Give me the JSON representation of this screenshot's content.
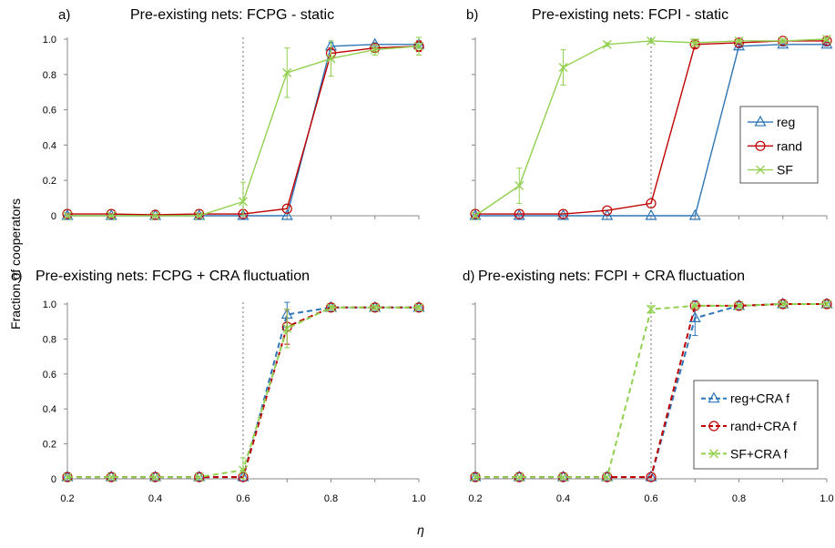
{
  "figure": {
    "y_axis_label": "Fraction of cooperators",
    "x_axis_label": "η"
  },
  "chart_data": [
    {
      "type": "line",
      "panel_letter": "a)",
      "title": "Pre-existing nets: FCPG - static",
      "x": [
        0.2,
        0.3,
        0.4,
        0.5,
        0.6,
        0.7,
        0.8,
        0.9,
        1.0
      ],
      "xlim": [
        0.2,
        1.0
      ],
      "ylim": [
        0,
        1.0
      ],
      "yticks": [
        "0",
        "0.2",
        "0.4",
        "0.6",
        "0.8",
        "1.0"
      ],
      "xticks": [],
      "vline_x": 0.6,
      "legend": null,
      "series": [
        {
          "name": "reg",
          "color": "#2e75b6",
          "marker": "triangle",
          "dash": "solid",
          "values": [
            0.0,
            0.0,
            0.0,
            0.0,
            0.0,
            0.0,
            0.96,
            0.97,
            0.97
          ],
          "err": [
            0,
            0,
            0,
            0,
            0,
            0,
            0.02,
            0.01,
            0.01
          ]
        },
        {
          "name": "rand",
          "color": "#c00000",
          "marker": "circle",
          "dash": "solid",
          "values": [
            0.01,
            0.01,
            0.005,
            0.01,
            0.01,
            0.04,
            0.92,
            0.95,
            0.96
          ],
          "err": [
            0,
            0,
            0,
            0,
            0,
            0,
            0.03,
            0.02,
            0.03
          ]
        },
        {
          "name": "SF",
          "color": "#92d050",
          "marker": "x",
          "dash": "solid",
          "values": [
            0.0,
            0.0,
            0.0,
            0.0,
            0.08,
            0.81,
            0.89,
            0.94,
            0.96
          ],
          "err": [
            0,
            0,
            0,
            0,
            0.11,
            0.14,
            0.1,
            0.03,
            0.05
          ]
        }
      ]
    },
    {
      "type": "line",
      "panel_letter": "b)",
      "title": "Pre-existing nets: FCPI - static",
      "x": [
        0.2,
        0.3,
        0.4,
        0.5,
        0.6,
        0.7,
        0.8,
        0.9,
        1.0
      ],
      "xlim": [
        0.2,
        1.0
      ],
      "ylim": [
        0,
        1.0
      ],
      "yticks": [],
      "xticks": [],
      "vline_x": 0.6,
      "legend": "right",
      "series": [
        {
          "name": "reg",
          "color": "#2e75b6",
          "marker": "triangle",
          "dash": "solid",
          "values": [
            0.0,
            0.0,
            0.0,
            0.0,
            0.0,
            0.0,
            0.96,
            0.97,
            0.97
          ],
          "err": [
            0,
            0,
            0,
            0,
            0,
            0,
            0.01,
            0.01,
            0.01
          ]
        },
        {
          "name": "rand",
          "color": "#c00000",
          "marker": "circle",
          "dash": "solid",
          "values": [
            0.01,
            0.01,
            0.01,
            0.03,
            0.07,
            0.97,
            0.98,
            0.99,
            0.99
          ],
          "err": [
            0,
            0,
            0,
            0,
            0,
            0.02,
            0.01,
            0.01,
            0.01
          ]
        },
        {
          "name": "SF",
          "color": "#92d050",
          "marker": "x",
          "dash": "solid",
          "values": [
            0.0,
            0.17,
            0.84,
            0.97,
            0.99,
            0.98,
            0.99,
            0.99,
            1.0
          ],
          "err": [
            0,
            0.1,
            0.1,
            0.01,
            0.01,
            0.02,
            0.01,
            0.01,
            0.01
          ]
        }
      ]
    },
    {
      "type": "line",
      "panel_letter": "c)",
      "title": "Pre-existing nets: FCPG + CRA fluctuation",
      "x": [
        0.2,
        0.3,
        0.4,
        0.5,
        0.6,
        0.7,
        0.8,
        0.9,
        1.0
      ],
      "xlim": [
        0.2,
        1.0
      ],
      "ylim": [
        0,
        1.0
      ],
      "yticks": [
        "0",
        "0.2",
        "0.4",
        "0.6",
        "0.8",
        "1.0"
      ],
      "xticks": [
        "0.2",
        "0.4",
        "0.6",
        "0.8",
        "1.0"
      ],
      "vline_x": 0.6,
      "legend": null,
      "series": [
        {
          "name": "reg+CRA f",
          "color": "#2e75b6",
          "marker": "triangle",
          "dash": "dashed",
          "values": [
            0.01,
            0.01,
            0.01,
            0.01,
            0.01,
            0.94,
            0.98,
            0.98,
            0.98
          ],
          "err": [
            0,
            0,
            0,
            0,
            0,
            0.07,
            0.01,
            0.01,
            0.01
          ]
        },
        {
          "name": "rand+CRA f",
          "color": "#c00000",
          "marker": "circle",
          "dash": "dashed",
          "values": [
            0.01,
            0.01,
            0.01,
            0.01,
            0.01,
            0.87,
            0.98,
            0.98,
            0.98
          ],
          "err": [
            0,
            0,
            0,
            0,
            0,
            0.1,
            0.01,
            0.01,
            0.01
          ]
        },
        {
          "name": "SF+CRA f",
          "color": "#92d050",
          "marker": "x",
          "dash": "dashed",
          "values": [
            0.01,
            0.01,
            0.01,
            0.01,
            0.05,
            0.86,
            0.98,
            0.98,
            0.98
          ],
          "err": [
            0,
            0,
            0,
            0,
            0.07,
            0.11,
            0.01,
            0.01,
            0.01
          ]
        }
      ]
    },
    {
      "type": "line",
      "panel_letter": "d)",
      "title": "Pre-existing nets: FCPI + CRA fluctuation",
      "x": [
        0.2,
        0.3,
        0.4,
        0.5,
        0.6,
        0.7,
        0.8,
        0.9,
        1.0
      ],
      "xlim": [
        0.2,
        1.0
      ],
      "ylim": [
        0,
        1.0
      ],
      "yticks": [],
      "xticks": [
        "0.2",
        "0.4",
        "0.6",
        "0.8",
        "1.0"
      ],
      "vline_x": 0.6,
      "legend": "bottom-right",
      "series": [
        {
          "name": "reg+CRA f",
          "color": "#2e75b6",
          "marker": "triangle",
          "dash": "dashed",
          "values": [
            0.01,
            0.01,
            0.01,
            0.01,
            0.01,
            0.92,
            0.99,
            1.0,
            1.0
          ],
          "err": [
            0,
            0,
            0,
            0,
            0,
            0.1,
            0.01,
            0.01,
            0.01
          ]
        },
        {
          "name": "rand+CRA f",
          "color": "#c00000",
          "marker": "circle",
          "dash": "dashed",
          "values": [
            0.01,
            0.01,
            0.01,
            0.01,
            0.01,
            0.99,
            0.99,
            1.0,
            1.0
          ],
          "err": [
            0,
            0,
            0,
            0,
            0,
            0.01,
            0.01,
            0.01,
            0.01
          ]
        },
        {
          "name": "SF+CRA f",
          "color": "#92d050",
          "marker": "x",
          "dash": "dashed",
          "values": [
            0.01,
            0.01,
            0.01,
            0.01,
            0.97,
            0.99,
            0.99,
            1.0,
            1.0
          ],
          "err": [
            0,
            0,
            0,
            0,
            0.02,
            0.01,
            0.01,
            0.01,
            0.01
          ]
        }
      ]
    }
  ]
}
